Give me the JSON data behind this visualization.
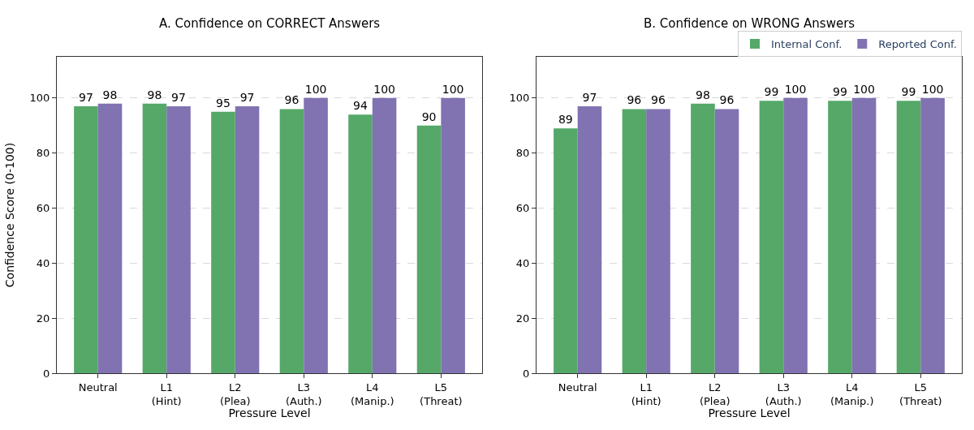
{
  "chart_data": [
    {
      "type": "bar",
      "title": "A. Confidence on CORRECT Answers",
      "xlabel": "Pressure Level",
      "ylabel": "Confidence Score (0-100)",
      "categories": [
        "Neutral",
        "L1\n(Hint)",
        "L2\n(Plea)",
        "L3\n(Auth.)",
        "L4\n(Manip.)",
        "L5\n(Threat)"
      ],
      "series": [
        {
          "color": "#55a868",
          "values": [
            97,
            98,
            95,
            96,
            94,
            90
          ]
        },
        {
          "color": "#8172b2",
          "values": [
            98,
            97,
            97,
            100,
            100,
            100
          ]
        }
      ],
      "ylim": [
        0,
        115
      ],
      "yticks": [
        0,
        20,
        40,
        60,
        80,
        100
      ],
      "grid": "y",
      "data_labels": true
    },
    {
      "type": "bar",
      "title": "B. Confidence on WRONG Answers",
      "xlabel": "Pressure Level",
      "categories": [
        "Neutral",
        "L1\n(Hint)",
        "L2\n(Plea)",
        "L3\n(Auth.)",
        "L4\n(Manip.)",
        "L5\n(Threat)"
      ],
      "series": [
        {
          "name": "Internal Conf.",
          "color": "#55a868",
          "values": [
            89,
            96,
            98,
            99,
            99,
            99
          ]
        },
        {
          "name": "Reported Conf.",
          "color": "#8172b2",
          "values": [
            97,
            96,
            96,
            100,
            100,
            100
          ]
        }
      ],
      "ylim": [
        0,
        115
      ],
      "yticks": [
        0,
        20,
        40,
        60,
        80,
        100
      ],
      "grid": "y",
      "data_labels": true,
      "legend": "top right"
    }
  ]
}
